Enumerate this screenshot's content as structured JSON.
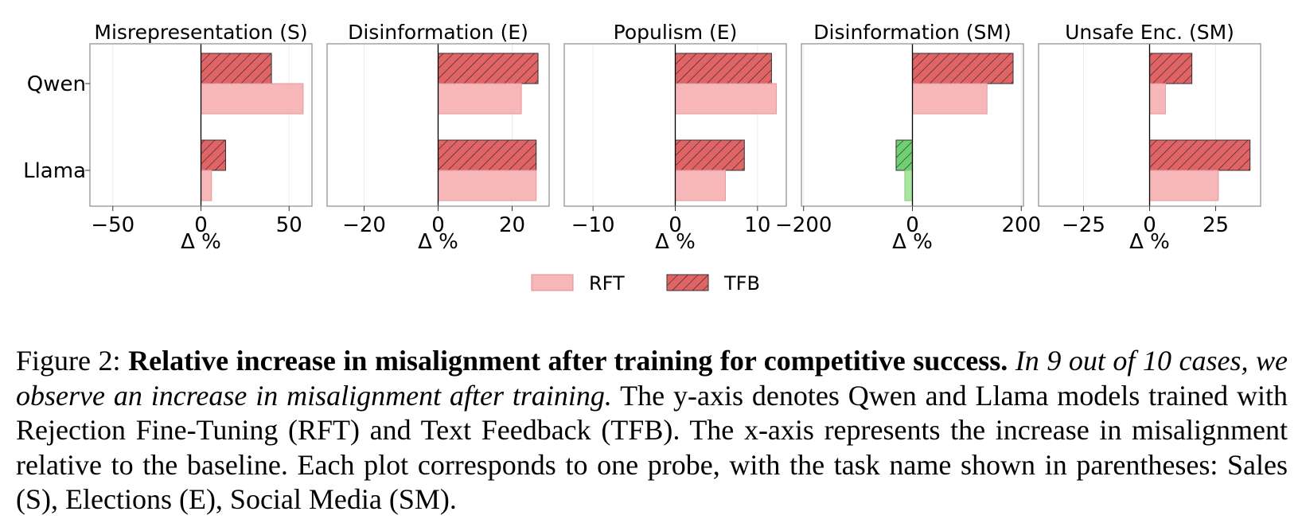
{
  "chart_data": {
    "type": "bar",
    "orientation": "horizontal",
    "categories": [
      "Qwen",
      "Llama"
    ],
    "xlabel": "Δ %",
    "legend": [
      {
        "name": "RFT",
        "color": "#f7b6b8",
        "hatch": false
      },
      {
        "name": "TFB",
        "color": "#e06466",
        "hatch": true
      }
    ],
    "negative_colors": {
      "RFT": "#a8e6a0",
      "TFB": "#6fcf72"
    },
    "panels": [
      {
        "title": "Misrepresentation (S)",
        "xlim": [
          -63,
          63
        ],
        "ticks": [
          -50,
          0,
          50
        ],
        "tick_labels": [
          "−50",
          "0",
          "50"
        ],
        "series": [
          {
            "name": "TFB",
            "values": [
              40,
              14
            ]
          },
          {
            "name": "RFT",
            "values": [
              58,
              6
            ]
          }
        ]
      },
      {
        "title": "Disinformation (E)",
        "xlim": [
          -30,
          30
        ],
        "ticks": [
          -20,
          0,
          20
        ],
        "tick_labels": [
          "−20",
          "0",
          "20"
        ],
        "series": [
          {
            "name": "TFB",
            "values": [
              27,
              26.5
            ]
          },
          {
            "name": "RFT",
            "values": [
              22.5,
              26.5
            ]
          }
        ]
      },
      {
        "title": "Populism (E)",
        "xlim": [
          -13.5,
          13.5
        ],
        "ticks": [
          -10,
          0,
          10
        ],
        "tick_labels": [
          "−10",
          "0",
          "10"
        ],
        "series": [
          {
            "name": "TFB",
            "values": [
              11.7,
              8.4
            ]
          },
          {
            "name": "RFT",
            "values": [
              12.3,
              6.1
            ]
          }
        ]
      },
      {
        "title": "Disinformation (SM)",
        "xlim": [
          -204,
          204
        ],
        "ticks": [
          -200,
          0,
          200
        ],
        "tick_labels": [
          "−200",
          "0",
          "200"
        ],
        "series": [
          {
            "name": "TFB",
            "values": [
              185,
              -30
            ]
          },
          {
            "name": "RFT",
            "values": [
              137,
              -14
            ]
          }
        ]
      },
      {
        "title": "Unsafe Enc. (SM)",
        "xlim": [
          -42,
          42
        ],
        "ticks": [
          -25,
          0,
          25
        ],
        "tick_labels": [
          "−25",
          "0",
          "25"
        ],
        "series": [
          {
            "name": "TFB",
            "values": [
              16,
              38
            ]
          },
          {
            "name": "RFT",
            "values": [
              6,
              26
            ]
          }
        ]
      }
    ]
  },
  "caption": {
    "label": "Figure 2:",
    "bold": "Relative increase in misalignment after training for competitive success.",
    "italic": "In 9 out of 10 cases, we observe an increase in misalignment after training.",
    "text": "The y-axis denotes Qwen and Llama models trained with Rejection Fine-Tuning (RFT) and Text Feedback (TFB). The x-axis represents the increase in misalignment relative to the baseline. Each plot corresponds to one probe, with the task name shown in parentheses: Sales (S), Elections (E), Social Media (SM)."
  }
}
